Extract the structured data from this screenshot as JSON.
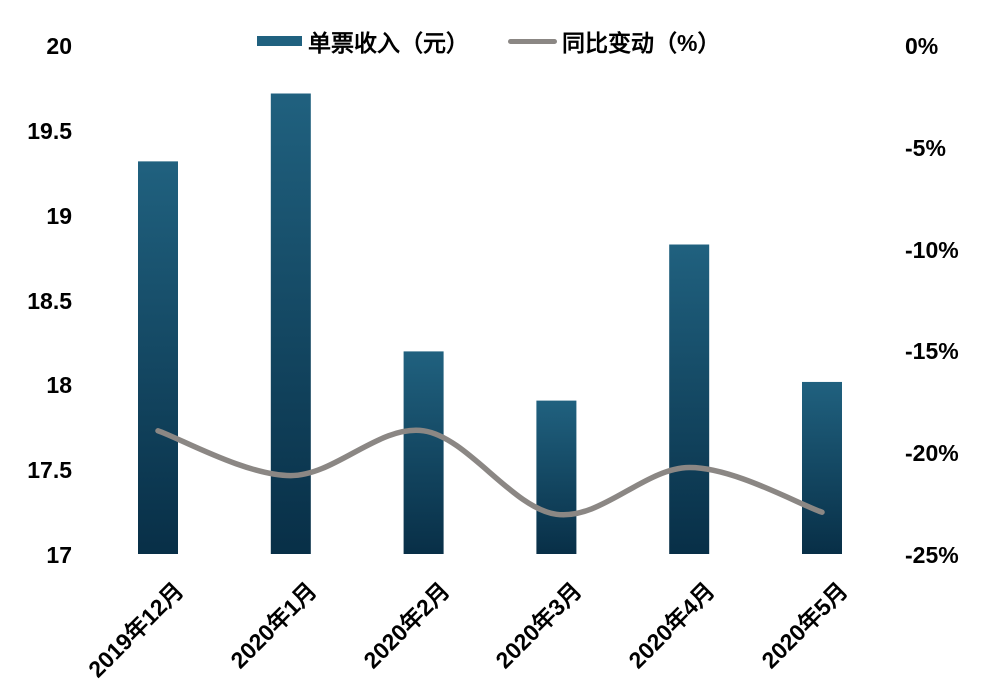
{
  "chart_data": {
    "type": "bar",
    "subtype": "combo-bar-line-dual-axis",
    "categories": [
      "2019年12月",
      "2020年1月",
      "2020年2月",
      "2020年3月",
      "2020年4月",
      "2020年5月"
    ],
    "series": [
      {
        "name": "单票收入（元）",
        "type": "bar",
        "axis": "left",
        "values": [
          19.32,
          19.72,
          18.2,
          17.91,
          18.83,
          18.02
        ],
        "color_top": "#20617F",
        "color_bottom": "#082F47"
      },
      {
        "name": "同比变动（%）",
        "type": "line",
        "axis": "right",
        "values": [
          -18.9,
          -21.1,
          -18.9,
          -23.0,
          -20.7,
          -22.9
        ],
        "color": "#8B8784"
      }
    ],
    "left_axis": {
      "min": 17,
      "max": 20,
      "ticks": [
        "20",
        "19.5",
        "19",
        "18.5",
        "18",
        "17.5",
        "17"
      ]
    },
    "right_axis": {
      "min": -25,
      "max": 0,
      "ticks": [
        "0%",
        "-5%",
        "-10%",
        "-15%",
        "-20%",
        "-25%"
      ]
    },
    "title": "",
    "xlabel": "",
    "ylabel": "",
    "grid": false,
    "legend_position": "top-center",
    "background": "#FFFFFF"
  }
}
